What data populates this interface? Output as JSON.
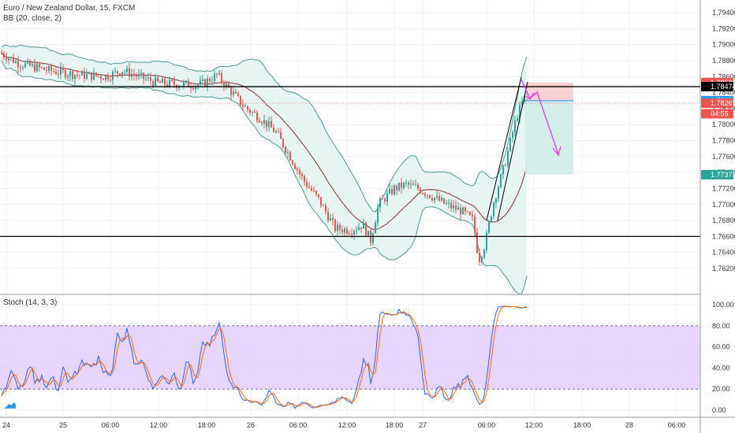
{
  "header": {
    "symbol_line": "Euro / New Zealand Dollar, 15, FXCM",
    "indicator_line": "BB (20, close, 2)",
    "sub_indicator_line": "Stoch (14, 3, 3)"
  },
  "colors": {
    "up": "#26a69a",
    "down": "#ef5350",
    "bb_band": "#4a9a92",
    "bb_basis": "#8b2a2a",
    "bb_fill": "#e6f4f2",
    "stoch_k": "#2962ff",
    "stoch_d": "#ff6d00",
    "stoch_fill": "#dfc7ff",
    "arrow": "#e040fb",
    "sr_line": "#000000"
  },
  "icons": {
    "logo": "tradingview-cloud-icon"
  },
  "price_axis": {
    "ticks": [
      "1.79400",
      "1.79200",
      "1.79000",
      "1.78800",
      "1.78600",
      "1.78400",
      "1.78200",
      "1.78000",
      "1.77800",
      "1.77600",
      "1.77400",
      "1.77200",
      "1.77000",
      "1.76800",
      "1.76600",
      "1.76400",
      "1.76200"
    ],
    "tags": [
      {
        "label": "1.78526",
        "value": 1.78526,
        "bg": "#ef5350"
      },
      {
        "label": "1.78474",
        "value": 1.78474,
        "bg": "#000000"
      },
      {
        "label": "1.78298",
        "value": 1.78298,
        "bg": "#2196f3"
      },
      {
        "label": "1.78267",
        "value": 1.78267,
        "bg": "#ef5350"
      },
      {
        "label": "04:55",
        "value": 1.78135,
        "bg": "#ef5350"
      },
      {
        "label": "1.77373",
        "value": 1.77373,
        "bg": "#26a69a"
      }
    ]
  },
  "stoch_axis": {
    "ticks": [
      "100.00",
      "80.00",
      "60.00",
      "40.00",
      "20.00",
      "0.00"
    ]
  },
  "time_axis": {
    "ticks": [
      "24",
      "25",
      "06:00",
      "12:00",
      "18:00",
      "26",
      "06:00",
      "12:00",
      "18:00",
      "27",
      "06:00",
      "12:00",
      "18:00",
      "28",
      "06:00"
    ]
  },
  "drawings": {
    "resistance_level": 1.78474,
    "support_level": 1.766,
    "position": {
      "entry": 1.78298,
      "stop": 1.78526,
      "target": 1.77373
    }
  },
  "chart_data": {
    "type": "candlestick",
    "series_overlay": [
      "BB upper",
      "BB basis",
      "BB lower"
    ],
    "price_range": [
      1.76,
      1.795
    ],
    "approx_path": [
      [
        0,
        1.789
      ],
      [
        25,
        1.7876
      ],
      [
        60,
        1.7868
      ],
      [
        100,
        1.7862
      ],
      [
        135,
        1.786
      ],
      [
        155,
        1.7868
      ],
      [
        175,
        1.786
      ],
      [
        200,
        1.7852
      ],
      [
        230,
        1.785
      ],
      [
        255,
        1.785
      ],
      [
        275,
        1.7862
      ],
      [
        290,
        1.7845
      ],
      [
        310,
        1.7822
      ],
      [
        330,
        1.7808
      ],
      [
        350,
        1.779
      ],
      [
        368,
        1.776
      ],
      [
        385,
        1.773
      ],
      [
        405,
        1.7705
      ],
      [
        425,
        1.767
      ],
      [
        445,
        1.7668
      ],
      [
        460,
        1.7675
      ],
      [
        470,
        1.7655
      ],
      [
        480,
        1.77
      ],
      [
        500,
        1.772
      ],
      [
        515,
        1.7725
      ],
      [
        530,
        1.772
      ],
      [
        545,
        1.7712
      ],
      [
        565,
        1.77
      ],
      [
        585,
        1.7692
      ],
      [
        600,
        1.768
      ],
      [
        607,
        1.763
      ],
      [
        615,
        1.765
      ],
      [
        625,
        1.77
      ],
      [
        640,
        1.775
      ],
      [
        655,
        1.781
      ],
      [
        668,
        1.784
      ]
    ],
    "stoch_range": [
      0,
      100
    ],
    "stoch_levels": [
      80,
      20
    ]
  }
}
